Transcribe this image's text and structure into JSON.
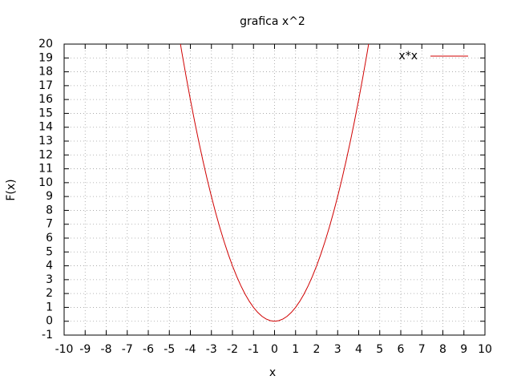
{
  "chart_data": {
    "type": "line",
    "title": "grafica x^2",
    "x_label": "x",
    "y_label": "F(x)",
    "x": [
      -4.6,
      -4.4,
      -4.2,
      -4.0,
      -3.8,
      -3.6,
      -3.4,
      -3.2,
      -3.0,
      -2.8,
      -2.6,
      -2.4,
      -2.2,
      -2.0,
      -1.8,
      -1.6,
      -1.4,
      -1.2,
      -1.0,
      -0.8,
      -0.6,
      -0.4,
      -0.2,
      0,
      0.2,
      0.4,
      0.6,
      0.8,
      1.0,
      1.2,
      1.4,
      1.6,
      1.8,
      2.0,
      2.2,
      2.4,
      2.6,
      2.8,
      3.0,
      3.2,
      3.4,
      3.6,
      3.8,
      4.0,
      4.2,
      4.4,
      4.6
    ],
    "series": [
      {
        "name": "x*x",
        "color": "#d00000",
        "values": [
          21.16,
          19.36,
          17.64,
          16,
          14.44,
          12.96,
          11.56,
          10.24,
          9,
          7.84,
          6.76,
          5.76,
          4.84,
          4,
          3.24,
          2.56,
          1.96,
          1.44,
          1,
          0.64,
          0.36,
          0.16,
          0.04,
          0,
          0.04,
          0.16,
          0.36,
          0.64,
          1,
          1.44,
          1.96,
          2.56,
          3.24,
          4,
          4.84,
          5.76,
          6.76,
          7.84,
          9,
          10.24,
          11.56,
          12.96,
          14.44,
          16,
          17.64,
          19.36,
          21.16
        ]
      }
    ],
    "xlim": [
      -10,
      10
    ],
    "xticks": [
      -10,
      -9,
      -8,
      -7,
      -6,
      -5,
      -4,
      -3,
      -2,
      -1,
      0,
      1,
      2,
      3,
      4,
      5,
      6,
      7,
      8,
      9,
      10
    ],
    "ylim": [
      -1,
      20
    ],
    "yticks": [
      -1,
      0,
      1,
      2,
      3,
      4,
      5,
      6,
      7,
      8,
      9,
      10,
      11,
      12,
      13,
      14,
      15,
      16,
      17,
      18,
      19,
      20
    ],
    "grid": true,
    "legend": "top-right"
  }
}
